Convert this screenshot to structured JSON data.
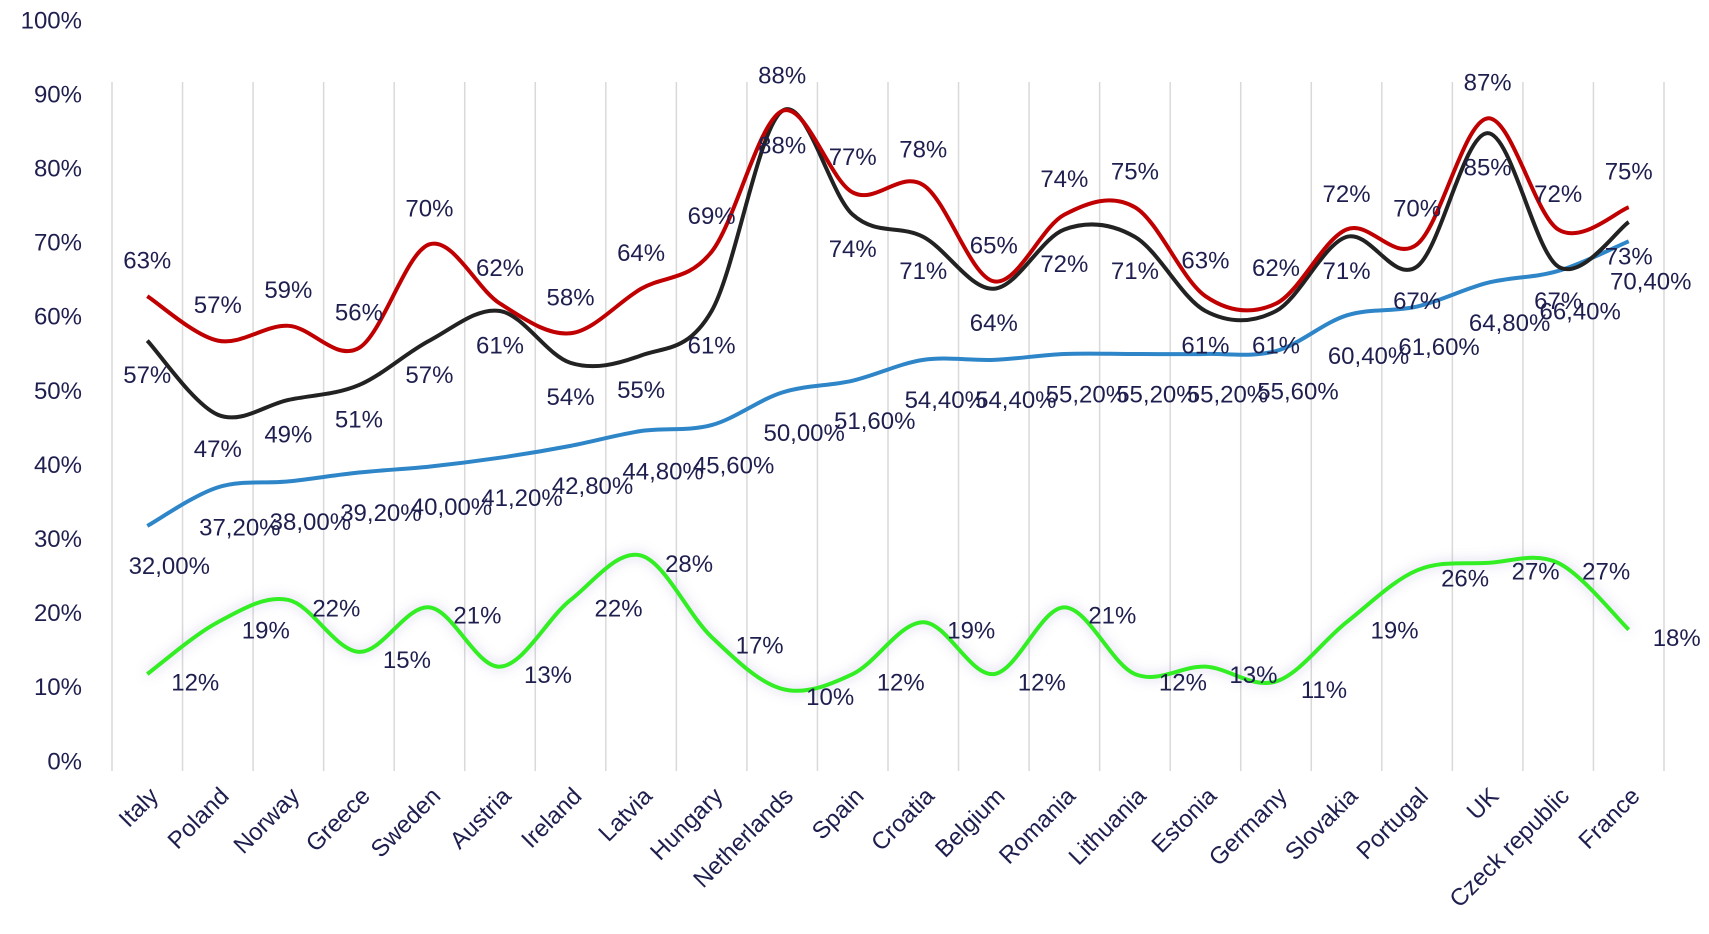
{
  "chart_data": {
    "type": "line",
    "categories": [
      "Italy",
      "Poland",
      "Norway",
      "Greece",
      "Sweden",
      "Austria",
      "Ireland",
      "Latvia",
      "Hungary",
      "Netherlands",
      "Spain",
      "Croatia",
      "Belgium",
      "Romania",
      "Lithuania",
      "Estonia",
      "Germany",
      "Slovakia",
      "Portugal",
      "UK",
      "Czeck republic",
      "France"
    ],
    "series": [
      {
        "color": "#2e86c8",
        "values": [
          32.0,
          37.2,
          38.0,
          39.2,
          40.0,
          41.2,
          42.8,
          44.8,
          45.6,
          50.0,
          51.6,
          54.4,
          54.4,
          55.2,
          55.2,
          55.2,
          55.6,
          60.4,
          61.6,
          64.8,
          66.4,
          70.4
        ],
        "value_labels": [
          "32,00%",
          "37,20%",
          "38,00%",
          "39,20%",
          "40,00%",
          "41,20%",
          "42,80%",
          "44,80%",
          "45,60%",
          "50,00%",
          "51,60%",
          "54,40%",
          "54,40%",
          "55,20%",
          "55,20%",
          "55,20%",
          "55,60%",
          "60,40%",
          "61,60%",
          "64,80%",
          "66,40%",
          "70,40%"
        ]
      },
      {
        "color": "#33ee22",
        "values": [
          12,
          19,
          22,
          15,
          21,
          13,
          22,
          28,
          17,
          10,
          12,
          19,
          12,
          21,
          12,
          13,
          11,
          19,
          26,
          27,
          27,
          18
        ],
        "value_labels": [
          "12%",
          "19%",
          "22%",
          "15%",
          "21%",
          "13%",
          "22%",
          "28%",
          "17%",
          "10%",
          "12%",
          "19%",
          "12%",
          "21%",
          "12%",
          "13%",
          "11%",
          "19%",
          "26%",
          "27%",
          "27%",
          "18%"
        ]
      },
      {
        "color": "#222222",
        "values": [
          57,
          47,
          49,
          51,
          57,
          61,
          54,
          55,
          61,
          88,
          74,
          71,
          64,
          72,
          71,
          61,
          61,
          71,
          67,
          85,
          67,
          73
        ],
        "value_labels": [
          "57%",
          "47%",
          "49%",
          "51%",
          "57%",
          "61%",
          "54%",
          "55%",
          "61%",
          "88%",
          "74%",
          "71%",
          "64%",
          "72%",
          "71%",
          "61%",
          "61%",
          "71%",
          "67%",
          "85%",
          "67%",
          "73%"
        ]
      },
      {
        "color": "#c00000",
        "values": [
          63,
          57,
          59,
          56,
          70,
          62,
          58,
          64,
          69,
          88,
          77,
          78,
          65,
          74,
          75,
          63,
          62,
          72,
          70,
          87,
          72,
          75
        ],
        "value_labels": [
          "63%",
          "57%",
          "59%",
          "56%",
          "70%",
          "62%",
          "58%",
          "64%",
          "69%",
          "88%",
          "77%",
          "78%",
          "65%",
          "74%",
          "75%",
          "63%",
          "62%",
          "72%",
          "70%",
          "87%",
          "72%",
          "75%"
        ]
      }
    ],
    "ylim": [
      0,
      100
    ],
    "yticks": [
      {
        "value": 0,
        "label": "0%"
      },
      {
        "value": 10,
        "label": "10%"
      },
      {
        "value": 20,
        "label": "20%"
      },
      {
        "value": 30,
        "label": "30%"
      },
      {
        "value": 40,
        "label": "40%"
      },
      {
        "value": 50,
        "label": "50%"
      },
      {
        "value": 60,
        "label": "60%"
      },
      {
        "value": 70,
        "label": "70%"
      },
      {
        "value": 80,
        "label": "80%"
      },
      {
        "value": 90,
        "label": "90%"
      },
      {
        "value": 100,
        "label": "100%"
      }
    ],
    "grid": true
  }
}
